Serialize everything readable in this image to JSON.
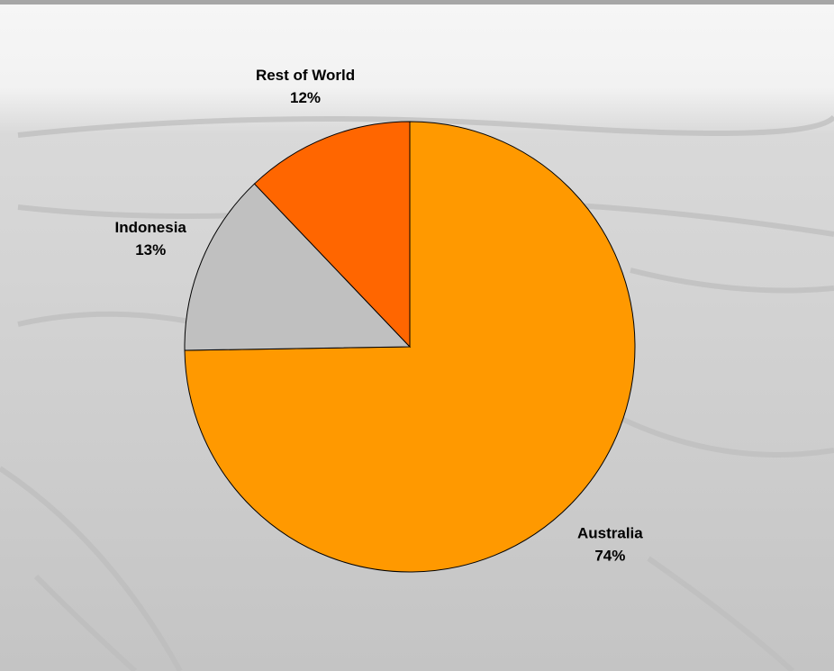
{
  "chart_data": {
    "type": "pie",
    "categories": [
      "Australia",
      "Indonesia",
      "Rest of World"
    ],
    "values": [
      74,
      13,
      12
    ],
    "value_labels": [
      "74%",
      "13%",
      "12%"
    ],
    "colors": [
      "#ff9900",
      "#c0c0c0",
      "#ff6600"
    ]
  }
}
